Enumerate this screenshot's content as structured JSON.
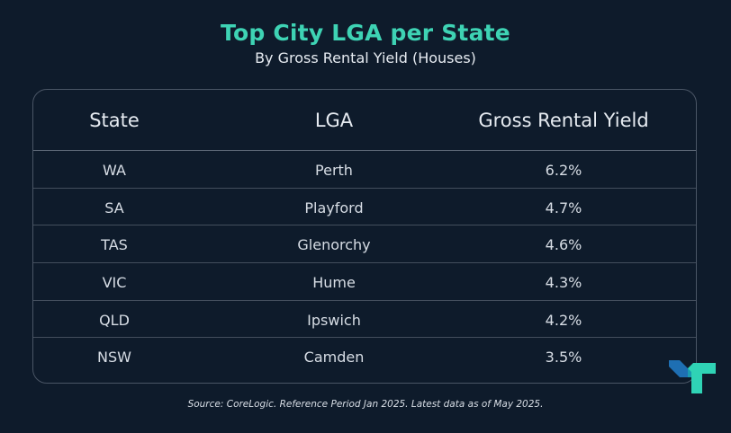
{
  "title": "Top City LGA per State",
  "subtitle": "By Gross Rental Yield (Houses)",
  "source": "Source: CoreLogic. Reference Period Jan 2025. Latest data as of May 2025.",
  "colors": {
    "background": "#0e1b2b",
    "title": "#3ed3b4",
    "border": "#4a5565",
    "logo_blue": "#1e6fb3",
    "logo_teal": "#2fd3b5"
  },
  "logo_icon": "brand-logo-icon",
  "chart_data": {
    "type": "table",
    "columns": [
      "State",
      "LGA",
      "Gross Rental Yield"
    ],
    "rows": [
      [
        "WA",
        "Perth",
        "6.2%"
      ],
      [
        "SA",
        "Playford",
        "4.7%"
      ],
      [
        "TAS",
        "Glenorchy",
        "4.6%"
      ],
      [
        "VIC",
        "Hume",
        "4.3%"
      ],
      [
        "QLD",
        "Ipswich",
        "4.2%"
      ],
      [
        "NSW",
        "Camden",
        "3.5%"
      ]
    ]
  }
}
